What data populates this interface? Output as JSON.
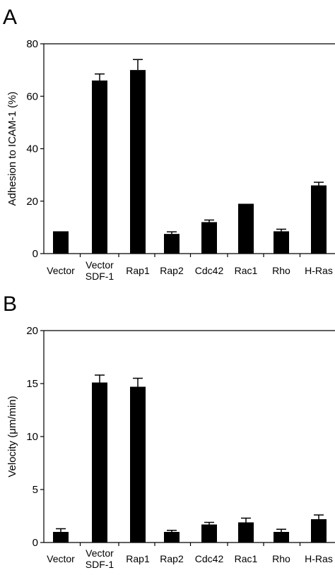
{
  "chart_data": [
    {
      "panel": "A",
      "type": "bar",
      "categories": [
        [
          "Vector"
        ],
        [
          "Vector",
          "SDF-1"
        ],
        [
          "Rap1"
        ],
        [
          "Rap2"
        ],
        [
          "Cdc42"
        ],
        [
          "Rac1"
        ],
        [
          "Rho"
        ],
        [
          "H-Ras"
        ]
      ],
      "values": [
        8.5,
        66,
        70,
        7.5,
        12,
        19,
        8.5,
        26
      ],
      "errors": [
        0,
        2.5,
        4,
        0.8,
        0.8,
        0,
        0.8,
        1.2
      ],
      "ylabel": "Adhesion to ICAM-1 (%)",
      "xlabel": "",
      "ylim": [
        0,
        80
      ],
      "yticks": [
        0,
        20,
        40,
        60,
        80
      ],
      "bar_color": "#000000"
    },
    {
      "panel": "B",
      "type": "bar",
      "categories": [
        [
          "Vector"
        ],
        [
          "Vector",
          "SDF-1"
        ],
        [
          "Rap1"
        ],
        [
          "Rap2"
        ],
        [
          "Cdc42"
        ],
        [
          "Rac1"
        ],
        [
          "Rho"
        ],
        [
          "H-Ras"
        ]
      ],
      "values": [
        1.0,
        15.1,
        14.7,
        1.0,
        1.7,
        1.9,
        1.0,
        2.2
      ],
      "errors": [
        0.3,
        0.7,
        0.8,
        0.15,
        0.2,
        0.4,
        0.25,
        0.4
      ],
      "ylabel": "Velocity (μm/min)",
      "xlabel": "",
      "ylim": [
        0,
        20
      ],
      "yticks": [
        0,
        5,
        10,
        15,
        20
      ],
      "bar_color": "#000000"
    }
  ],
  "panel_labels": [
    "A",
    "B"
  ]
}
